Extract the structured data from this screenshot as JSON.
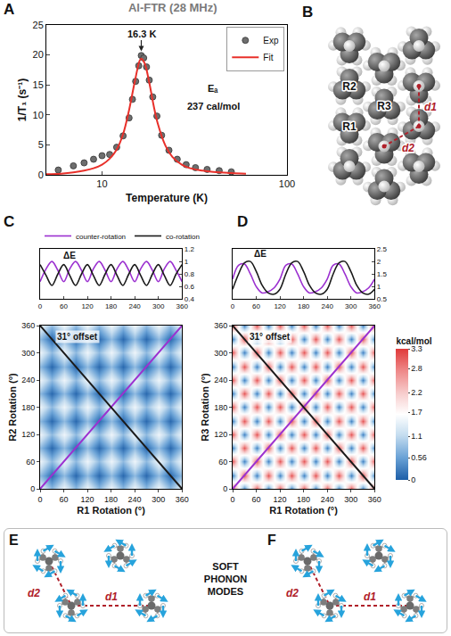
{
  "chart_data": [
    {
      "panel": "A",
      "type": "scatter",
      "title": "Al-FTR (28 MHz)",
      "x_label": "Temperature (K)",
      "y_label": "1/T₁ (s⁻¹)",
      "log": "x",
      "xlim": [
        5,
        100
      ],
      "xticks": [
        10,
        100
      ],
      "ylim": [
        0,
        25
      ],
      "yticks": [
        0,
        5,
        10,
        15,
        20,
        25
      ],
      "legend": "top right",
      "series": [
        {
          "name": "Exp",
          "type": "scatter",
          "marker": "circle",
          "color": "#6e6e6e",
          "x": [
            5.8,
            7,
            8,
            9,
            10,
            11,
            12,
            13,
            14,
            14.6,
            15.2,
            15.8,
            16.3,
            16.8,
            17.4,
            18,
            18.8,
            19.8,
            21,
            23,
            25.5,
            28.5,
            32,
            37,
            43,
            50
          ],
          "values": [
            0.8,
            1.5,
            2.0,
            2.6,
            3.2,
            3.4,
            4.6,
            6.5,
            9.5,
            12.6,
            15.6,
            18.2,
            19.9,
            19.5,
            18.0,
            15.8,
            13.0,
            9.8,
            6.6,
            4.1,
            2.6,
            1.7,
            1.2,
            0.9,
            0.7,
            0.5
          ]
        },
        {
          "name": "Fit",
          "type": "line",
          "color": "#e8302a",
          "x": [
            5,
            6,
            7,
            8,
            9,
            10,
            11,
            12,
            13,
            14,
            15,
            16,
            16.3,
            17,
            18,
            19,
            20,
            22,
            24,
            27,
            30,
            35,
            40,
            50,
            60
          ],
          "values": [
            0.1,
            0.2,
            0.4,
            0.7,
            1.1,
            1.7,
            2.7,
            4.2,
            6.8,
            10.8,
            15.4,
            19.1,
            19.4,
            18.6,
            15.4,
            11.6,
            8.6,
            4.9,
            3.0,
            1.7,
            1.1,
            0.7,
            0.5,
            0.3,
            0.2
          ]
        }
      ],
      "annotations": [
        {
          "text": "16.3 K",
          "x": 16.3,
          "y": 20.6,
          "marker": "arrow"
        },
        {
          "text": "Eₐ",
          "x": 40,
          "y": 14.5
        },
        {
          "text": "237 cal/mol",
          "x": 40,
          "y": 11.5
        }
      ]
    },
    {
      "panel": "C",
      "type": "line",
      "xlim": [
        0,
        360
      ],
      "xticks": [
        0,
        60,
        120,
        180,
        240,
        300,
        360
      ],
      "ylim": [
        0.4,
        1.2
      ],
      "yticks": [
        0.4,
        0.6,
        0.8,
        1,
        1.2
      ],
      "legend": "top",
      "x": [
        0,
        15,
        30,
        45,
        60,
        75,
        90,
        105,
        120,
        135,
        150,
        165,
        180,
        195,
        210,
        225,
        240,
        255,
        270,
        285,
        300,
        315,
        330,
        345,
        360
      ],
      "series": [
        {
          "name": "counter-rotation",
          "color": "#9b30d0",
          "values": [
            0.68,
            0.88,
            1.0,
            0.86,
            0.68,
            0.88,
            1.0,
            0.86,
            0.68,
            0.88,
            1.0,
            0.86,
            0.68,
            0.88,
            1.0,
            0.86,
            0.68,
            0.88,
            1.0,
            0.86,
            0.68,
            0.88,
            1.0,
            0.86,
            0.68
          ]
        },
        {
          "name": "co-rotation",
          "color": "#1a1a1a",
          "values": [
            0.95,
            0.78,
            0.62,
            0.8,
            0.95,
            0.78,
            0.62,
            0.8,
            0.95,
            0.78,
            0.62,
            0.8,
            0.95,
            0.78,
            0.62,
            0.8,
            0.95,
            0.78,
            0.62,
            0.8,
            0.95,
            0.78,
            0.62,
            0.8,
            0.95
          ]
        }
      ],
      "annotations": [
        {
          "text": "ΔE",
          "x": 75,
          "y": 1.1
        }
      ]
    },
    {
      "type": "heatmap",
      "x_label": "R1 Rotation (°)",
      "y_label": "R2 Rotation (°)",
      "xlim": [
        0,
        360
      ],
      "xticks": [
        0,
        60,
        120,
        180,
        240,
        300,
        360
      ],
      "ylim": [
        0,
        360
      ],
      "yticks": [
        0,
        60,
        120,
        180,
        240,
        300,
        360
      ],
      "x": [
        0,
        30,
        60,
        90,
        120,
        150,
        180,
        210,
        240,
        270,
        300,
        330,
        360
      ],
      "y": [
        0,
        30,
        60,
        90,
        120,
        150,
        180,
        210,
        240,
        270,
        300,
        330,
        360
      ],
      "z": [
        [
          1.5,
          0.8,
          1.5,
          0.8,
          1.5,
          0.8,
          1.5,
          0.8,
          1.5,
          0.8,
          1.5,
          0.8,
          1.5
        ],
        [
          0.8,
          0.1,
          0.8,
          0.1,
          0.8,
          0.1,
          0.8,
          0.1,
          0.8,
          0.1,
          0.8,
          0.1,
          0.8
        ],
        [
          1.5,
          0.8,
          1.5,
          0.8,
          1.5,
          0.8,
          1.5,
          0.8,
          1.5,
          0.8,
          1.5,
          0.8,
          1.5
        ],
        [
          0.8,
          0.1,
          0.8,
          0.1,
          0.8,
          0.1,
          0.8,
          0.1,
          0.8,
          0.1,
          0.8,
          0.1,
          0.8
        ],
        [
          1.5,
          0.8,
          1.5,
          0.8,
          1.5,
          0.8,
          1.5,
          0.8,
          1.5,
          0.8,
          1.5,
          0.8,
          1.5
        ],
        [
          0.8,
          0.1,
          0.8,
          0.1,
          0.8,
          0.1,
          0.8,
          0.1,
          0.8,
          0.1,
          0.8,
          0.1,
          0.8
        ],
        [
          1.5,
          0.8,
          1.5,
          0.8,
          1.5,
          0.8,
          1.5,
          0.8,
          1.5,
          0.8,
          1.5,
          0.8,
          1.5
        ],
        [
          0.8,
          0.1,
          0.8,
          0.1,
          0.8,
          0.1,
          0.8,
          0.1,
          0.8,
          0.1,
          0.8,
          0.1,
          0.8
        ],
        [
          1.5,
          0.8,
          1.5,
          0.8,
          1.5,
          0.8,
          1.5,
          0.8,
          1.5,
          0.8,
          1.5,
          0.8,
          1.5
        ],
        [
          0.8,
          0.1,
          0.8,
          0.1,
          0.8,
          0.1,
          0.8,
          0.1,
          0.8,
          0.1,
          0.8,
          0.1,
          0.8
        ],
        [
          1.5,
          0.8,
          1.5,
          0.8,
          1.5,
          0.8,
          1.5,
          0.8,
          1.5,
          0.8,
          1.5,
          0.8,
          1.5
        ],
        [
          0.8,
          0.1,
          0.8,
          0.1,
          0.8,
          0.1,
          0.8,
          0.1,
          0.8,
          0.1,
          0.8,
          0.1,
          0.8
        ],
        [
          1.5,
          0.8,
          1.5,
          0.8,
          1.5,
          0.8,
          1.5,
          0.8,
          1.5,
          0.8,
          1.5,
          0.8,
          1.5
        ]
      ],
      "zlim": [
        0,
        3.3
      ],
      "series": [
        {
          "color": "#9b30d0",
          "x": [
            0,
            360
          ],
          "values": [
            0,
            360
          ]
        },
        {
          "color": "#1a1a1a",
          "x": [
            0,
            360
          ],
          "values": [
            360,
            0
          ]
        }
      ],
      "annotations": [
        {
          "text": "31° offset",
          "x": 95,
          "y": 335
        }
      ]
    },
    {
      "panel": "D",
      "type": "line",
      "xlim": [
        0,
        360
      ],
      "xticks": [
        0,
        60,
        120,
        180,
        240,
        300,
        360
      ],
      "ylim": [
        0.5,
        2.5
      ],
      "yticks": [
        0.5,
        1,
        1.5,
        2,
        2.5
      ],
      "x": [
        0,
        15,
        30,
        45,
        60,
        75,
        90,
        105,
        120,
        135,
        150,
        165,
        180,
        195,
        210,
        225,
        240,
        255,
        270,
        285,
        300,
        315,
        330,
        345,
        360
      ],
      "series": [
        {
          "name": "counter-rotation",
          "color": "#9b30d0",
          "values": [
            1.3,
            1.85,
            1.9,
            1.5,
            1.0,
            0.75,
            0.8,
            0.95,
            1.3,
            1.85,
            1.9,
            1.5,
            1.0,
            0.75,
            0.8,
            0.95,
            1.3,
            1.85,
            1.9,
            1.5,
            1.0,
            0.75,
            0.8,
            0.95,
            1.3
          ]
        },
        {
          "name": "co-rotation",
          "color": "#1a1a1a",
          "values": [
            0.9,
            1.5,
            1.95,
            2.0,
            1.6,
            1.05,
            0.75,
            0.7,
            0.9,
            1.5,
            1.95,
            2.0,
            1.6,
            1.05,
            0.75,
            0.7,
            0.9,
            1.5,
            1.95,
            2.0,
            1.6,
            1.05,
            0.75,
            0.7,
            0.9
          ]
        }
      ],
      "annotations": [
        {
          "text": "ΔE",
          "x": 70,
          "y": 2.3
        }
      ]
    },
    {
      "type": "heatmap",
      "x_label": "R1 Rotation (°)",
      "y_label": "R3 Rotation (°)",
      "xlim": [
        0,
        360
      ],
      "xticks": [
        0,
        60,
        120,
        180,
        240,
        300,
        360
      ],
      "ylim": [
        0,
        360
      ],
      "yticks": [
        0,
        60,
        120,
        180,
        240,
        300,
        360
      ],
      "x": [
        0,
        30,
        60,
        90,
        120,
        150,
        180,
        210,
        240,
        270,
        300,
        330,
        360
      ],
      "y": [
        0,
        30,
        60,
        90,
        120,
        150,
        180,
        210,
        240,
        270,
        300,
        330,
        360
      ],
      "z": [
        [
          3.1,
          0.3,
          3.1,
          0.3,
          3.1,
          0.3,
          3.1,
          0.3,
          3.1,
          0.3,
          3.1,
          0.3,
          3.1
        ],
        [
          0.3,
          3.1,
          0.3,
          3.1,
          0.3,
          3.1,
          0.3,
          3.1,
          0.3,
          3.1,
          0.3,
          3.1,
          0.3
        ],
        [
          3.1,
          0.3,
          3.1,
          0.3,
          3.1,
          0.3,
          3.1,
          0.3,
          3.1,
          0.3,
          3.1,
          0.3,
          3.1
        ],
        [
          0.3,
          3.1,
          0.3,
          3.1,
          0.3,
          3.1,
          0.3,
          3.1,
          0.3,
          3.1,
          0.3,
          3.1,
          0.3
        ],
        [
          3.1,
          0.3,
          3.1,
          0.3,
          3.1,
          0.3,
          3.1,
          0.3,
          3.1,
          0.3,
          3.1,
          0.3,
          3.1
        ],
        [
          0.3,
          3.1,
          0.3,
          3.1,
          0.3,
          3.1,
          0.3,
          3.1,
          0.3,
          3.1,
          0.3,
          3.1,
          0.3
        ],
        [
          3.1,
          0.3,
          3.1,
          0.3,
          3.1,
          0.3,
          3.1,
          0.3,
          3.1,
          0.3,
          3.1,
          0.3,
          3.1
        ],
        [
          0.3,
          3.1,
          0.3,
          3.1,
          0.3,
          3.1,
          0.3,
          3.1,
          0.3,
          3.1,
          0.3,
          3.1,
          0.3
        ],
        [
          3.1,
          0.3,
          3.1,
          0.3,
          3.1,
          0.3,
          3.1,
          0.3,
          3.1,
          0.3,
          3.1,
          0.3,
          3.1
        ],
        [
          0.3,
          3.1,
          0.3,
          3.1,
          0.3,
          3.1,
          0.3,
          3.1,
          0.3,
          3.1,
          0.3,
          3.1,
          0.3
        ],
        [
          3.1,
          0.3,
          3.1,
          0.3,
          3.1,
          0.3,
          3.1,
          0.3,
          3.1,
          0.3,
          3.1,
          0.3,
          3.1
        ],
        [
          0.3,
          3.1,
          0.3,
          3.1,
          0.3,
          3.1,
          0.3,
          3.1,
          0.3,
          3.1,
          0.3,
          3.1,
          0.3
        ],
        [
          3.1,
          0.3,
          3.1,
          0.3,
          3.1,
          0.3,
          3.1,
          0.3,
          3.1,
          0.3,
          3.1,
          0.3,
          3.1
        ]
      ],
      "zlim": [
        0,
        3.3
      ],
      "zticks": [
        0,
        0.56,
        1.1,
        1.7,
        2.2,
        2.8,
        3.3
      ],
      "colorbar_title": "kcal/mol",
      "series": [
        {
          "color": "#9b30d0",
          "x": [
            0,
            360
          ],
          "values": [
            0,
            360
          ]
        },
        {
          "color": "#1a1a1a",
          "x": [
            0,
            360
          ],
          "values": [
            360,
            0
          ]
        }
      ],
      "annotations": [
        {
          "text": "31° offset",
          "x": 95,
          "y": 335
        }
      ]
    }
  ],
  "diagram": {
    "B": {
      "panel": "B",
      "rotor_labels": [
        "R1",
        "R2",
        "R3"
      ],
      "distances": [
        "d1",
        "d2"
      ]
    },
    "E": {
      "panel": "E",
      "distances": [
        "d1",
        "d2"
      ]
    },
    "F": {
      "panel": "F",
      "distances": [
        "d1",
        "d2"
      ]
    },
    "caption": "SOFT PHONON MODES"
  }
}
